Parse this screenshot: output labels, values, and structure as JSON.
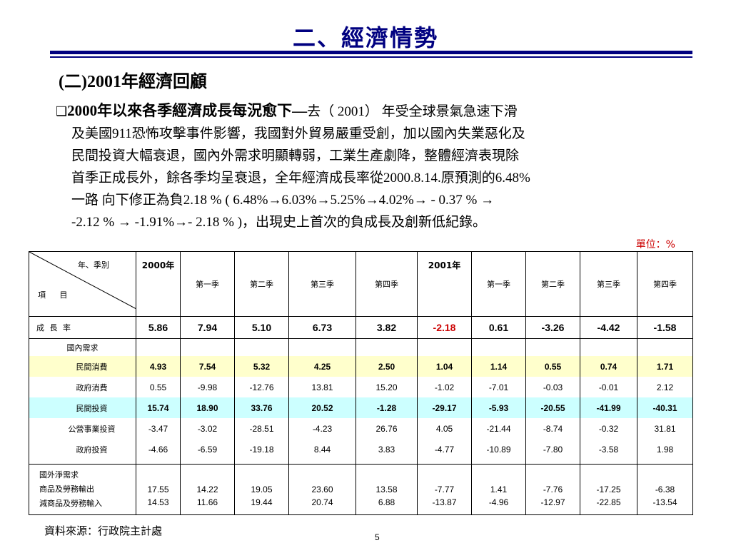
{
  "title": "二、經濟情勢",
  "subtitle": "(二)2001年經濟回顧",
  "paragraph": {
    "bullet": "❑",
    "lead": "2000年以來各季經濟成長每況愈下—",
    "line1": "去（ 2001） 年受全球景氣急速下滑",
    "line2": "及美國911恐怖攻擊事件影響，我國對外貿易嚴重受創，加以國內失業惡化及",
    "line3": "民間投資大幅衰退，國內外需求明顯轉弱，工業生產劇降，整體經濟表現除",
    "line4": "首季正成長外，餘各季均呈衰退，全年經濟成長率從2000.8.14.原預測的6.48%",
    "line5": "一路 向下修正為負2.18 % ( 6.48%→6.03%→5.25%→4.02%→ - 0.37 % →",
    "line6": "-2.12 % → -1.91%→- 2.18 % )，出現史上首次的負成長及創新低紀錄。"
  },
  "unit": "單位：%",
  "table": {
    "corner_top": "年、季別",
    "corner_bottom": "項 目",
    "columns": [
      "2000年",
      "第一季",
      "第二季",
      "第三季",
      "第四季",
      "2001年",
      "第一季",
      "第二季",
      "第三季",
      "第四季"
    ],
    "growth": {
      "label": "成 長 率",
      "values": [
        "5.86",
        "7.94",
        "5.10",
        "6.73",
        "3.82",
        "-2.18",
        "0.61",
        "-3.26",
        "-4.42",
        "-1.58"
      ]
    },
    "domestic_label": "國內需求",
    "rows": [
      {
        "label": "民間消費",
        "values": [
          "4.93",
          "7.54",
          "5.32",
          "4.25",
          "2.50",
          "1.04",
          "1.14",
          "0.55",
          "0.74",
          "1.71"
        ]
      },
      {
        "label": "政府消費",
        "values": [
          "0.55",
          "-9.98",
          "-12.76",
          "13.81",
          "15.20",
          "-1.02",
          "-7.01",
          "-0.03",
          "-0.01",
          "2.12"
        ]
      },
      {
        "label": "民間投資",
        "values": [
          "15.74",
          "18.90",
          "33.76",
          "20.52",
          "-1.28",
          "-29.17",
          "-5.93",
          "-20.55",
          "-41.99",
          "-40.31"
        ]
      },
      {
        "label": "公營事業投資",
        "values": [
          "-3.47",
          "-3.02",
          "-28.51",
          "-4.23",
          "26.76",
          "4.05",
          "-21.44",
          "-8.74",
          "-0.32",
          "31.81"
        ]
      },
      {
        "label": "政府投資",
        "values": [
          "-4.66",
          "-6.59",
          "-19.18",
          "8.44",
          "3.83",
          "-4.77",
          "-10.89",
          "-7.80",
          "-3.58",
          "1.98"
        ]
      }
    ],
    "foreign": {
      "label": "國外淨需求",
      "export_label": "商品及勞務輸出",
      "import_label": "減商品及勞務輸入",
      "exports": [
        "17.55",
        "14.22",
        "19.05",
        "23.60",
        "13.58",
        "-7.77",
        "1.41",
        "-7.76",
        "-17.25",
        "-6.38"
      ],
      "imports": [
        "14.53",
        "11.66",
        "19.44",
        "20.74",
        "6.88",
        "-13.87",
        "-4.96",
        "-12.97",
        "-22.85",
        "-13.54"
      ]
    },
    "highlight_colors": {
      "yellow": "#ffffcc",
      "cyan": "#ccffff",
      "red": "#cc0000",
      "title": "#000080"
    }
  },
  "source": "資料來源：行政院主計處",
  "page_number": "5"
}
